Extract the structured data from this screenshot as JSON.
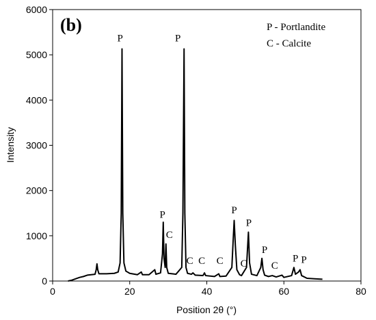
{
  "chart_data": {
    "type": "line",
    "panel_label": "(b)",
    "xlabel": "Position 2θ (°)",
    "ylabel": "Intensity",
    "legend_texts": [
      "P - Portlandite",
      "C - Calcite"
    ],
    "xlim": [
      0,
      80
    ],
    "xticks": [
      0,
      20,
      40,
      60,
      80
    ],
    "ylim": [
      0,
      6000
    ],
    "yticks": [
      0,
      1000,
      2000,
      3000,
      4000,
      5000,
      6000
    ],
    "series": [
      {
        "color": "#000000",
        "x": [
          4,
          5,
          6,
          7,
          8,
          9,
          10,
          11,
          11.3,
          11.5,
          11.7,
          12,
          14,
          16,
          17,
          17.5,
          17.8,
          18.0,
          18.2,
          18.5,
          19,
          20,
          22,
          23,
          23.3,
          25,
          26.5,
          26.8,
          28,
          28.5,
          28.7,
          28.9,
          29.2,
          29.4,
          29.6,
          30,
          32,
          33.5,
          33.8,
          34.1,
          34.3,
          34.6,
          35,
          36,
          36.4,
          37,
          39,
          39.4,
          39.7,
          42,
          43.1,
          43.4,
          45,
          46.5,
          46.9,
          47.1,
          47.4,
          47.8,
          48.5,
          49,
          50.3,
          50.8,
          51.1,
          51.6,
          53,
          54,
          54.3,
          54.6,
          55,
          56,
          57,
          58,
          59.5,
          60,
          62,
          62.6,
          63,
          63.8,
          64.2,
          64.6,
          66,
          68,
          70
        ],
        "values": [
          0,
          20,
          50,
          80,
          100,
          130,
          140,
          150,
          250,
          380,
          250,
          160,
          160,
          170,
          200,
          400,
          1500,
          5130,
          1500,
          400,
          220,
          170,
          140,
          200,
          140,
          140,
          250,
          150,
          180,
          600,
          1300,
          500,
          300,
          820,
          300,
          170,
          150,
          300,
          1500,
          5130,
          1500,
          300,
          170,
          150,
          180,
          130,
          120,
          180,
          120,
          100,
          160,
          100,
          110,
          300,
          1000,
          1340,
          800,
          250,
          140,
          120,
          300,
          1080,
          400,
          150,
          120,
          300,
          500,
          250,
          130,
          100,
          120,
          90,
          130,
          80,
          120,
          300,
          150,
          200,
          250,
          120,
          60,
          50,
          40
        ]
      }
    ],
    "annotations": [
      {
        "text": "P",
        "x": 17.5,
        "y": 5300
      },
      {
        "text": "P",
        "x": 32.5,
        "y": 5300
      },
      {
        "text": "P",
        "x": 28.5,
        "y": 1400
      },
      {
        "text": "C",
        "x": 30.3,
        "y": 950
      },
      {
        "text": "C",
        "x": 35.6,
        "y": 380
      },
      {
        "text": "C",
        "x": 38.7,
        "y": 380
      },
      {
        "text": "C",
        "x": 43.4,
        "y": 380
      },
      {
        "text": "P",
        "x": 47.1,
        "y": 1500
      },
      {
        "text": "C",
        "x": 49.6,
        "y": 320
      },
      {
        "text": "P",
        "x": 50.9,
        "y": 1220
      },
      {
        "text": "P",
        "x": 55.0,
        "y": 620
      },
      {
        "text": "C",
        "x": 57.6,
        "y": 270
      },
      {
        "text": "P",
        "x": 63.0,
        "y": 430
      },
      {
        "text": "P",
        "x": 65.2,
        "y": 400
      }
    ]
  }
}
